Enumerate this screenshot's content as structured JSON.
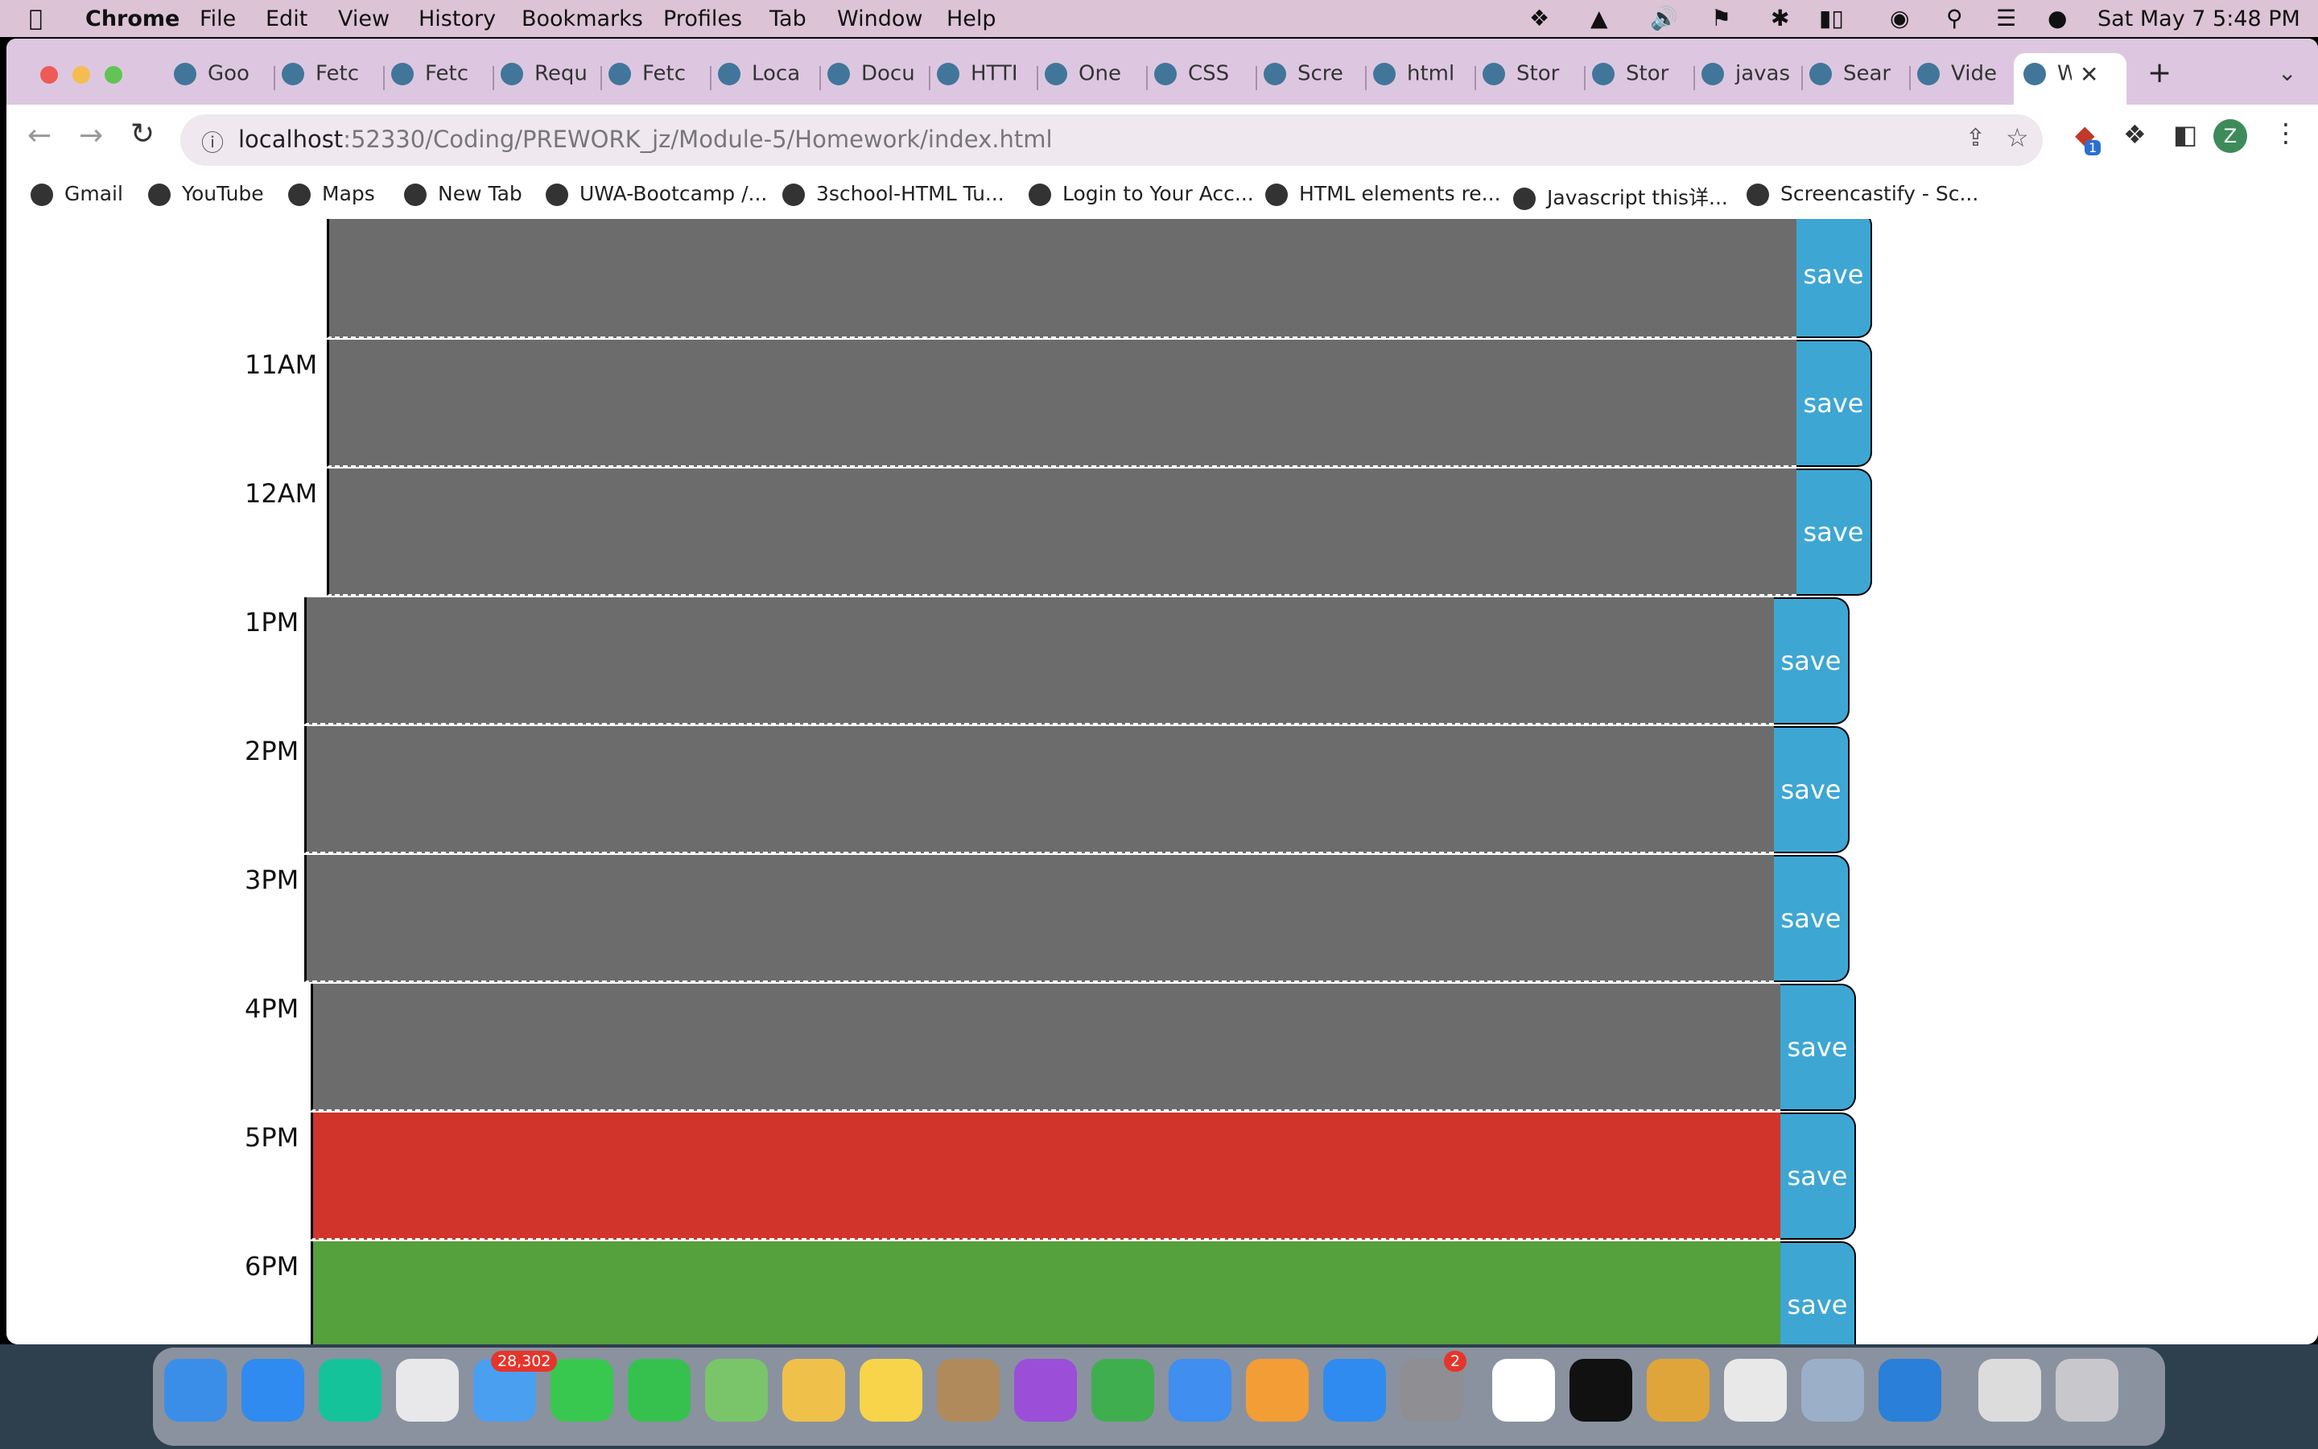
{
  "menubar": {
    "app": "Chrome",
    "menus": [
      "File",
      "Edit",
      "View",
      "History",
      "Bookmarks",
      "Profiles",
      "Tab",
      "Window",
      "Help"
    ],
    "clock": "Sat May 7  5:48 PM"
  },
  "tabs": [
    "Goo",
    "Fetc",
    "Fetc",
    "Requ",
    "Fetc",
    "Loca",
    "Docu",
    "HTTI",
    "One",
    "CSS",
    "Scre",
    "html",
    "Stor",
    "Stor",
    "javas",
    "Sear",
    "Vide",
    "W"
  ],
  "address": {
    "host": "localhost",
    "path": ":52330/Coding/PREWORK_jz/Module-5/Homework/index.html"
  },
  "profile_initial": "Z",
  "extension_badge": "1",
  "bookmarks": [
    "Gmail",
    "YouTube",
    "Maps",
    "New Tab",
    "UWA-Bootcamp /...",
    "3school-HTML Tu...",
    "Login to Your Acc...",
    "HTML elements re...",
    "Javascript this详...",
    "Screencastify - Sc..."
  ],
  "planner": {
    "save_label": "save",
    "rows": [
      {
        "hour": "",
        "state": "past"
      },
      {
        "hour": "11AM",
        "state": "past"
      },
      {
        "hour": "12AM",
        "state": "past"
      },
      {
        "hour": "1PM",
        "state": "past"
      },
      {
        "hour": "2PM",
        "state": "past"
      },
      {
        "hour": "3PM",
        "state": "past"
      },
      {
        "hour": "4PM",
        "state": "past"
      },
      {
        "hour": "5PM",
        "state": "present"
      },
      {
        "hour": "6PM",
        "state": "future"
      }
    ]
  },
  "colors": {
    "past": "#6d6c6d",
    "present": "#d0342a",
    "future": "#54a13d",
    "save": "#3ea6d3"
  },
  "dock": {
    "mail_badge": "28,302",
    "settings_badge": "2"
  }
}
